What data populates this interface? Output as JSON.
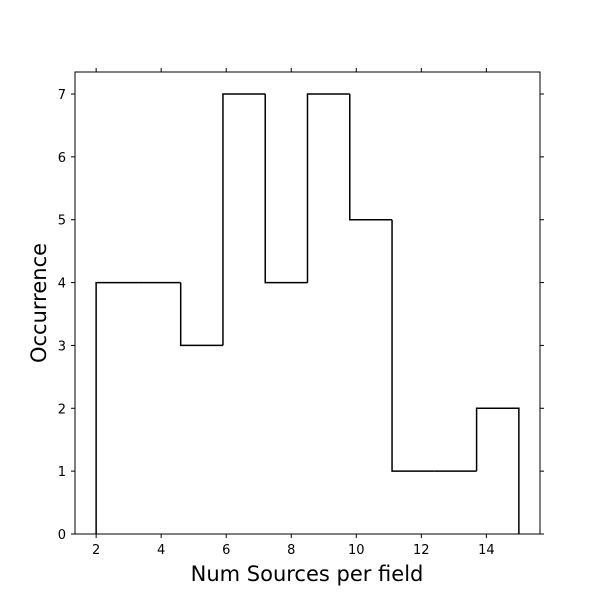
{
  "chart_data": {
    "type": "histogram-step",
    "x_label": "Num Sources per field",
    "y_label": "Occurrence",
    "bins": [
      2,
      3.3,
      4.6,
      5.9,
      7.2,
      8.5,
      9.8,
      11.1,
      12.4,
      13.7,
      15
    ],
    "values": [
      4,
      4,
      3,
      7,
      4,
      7,
      5,
      1,
      1,
      2
    ],
    "color": "#000000",
    "xlim": [
      1.35,
      15.65
    ],
    "ylim": [
      0,
      7.35
    ],
    "xticks": [
      2,
      4,
      6,
      8,
      10,
      12,
      14
    ],
    "yticks": [
      0,
      1,
      2,
      3,
      4,
      5,
      6,
      7
    ]
  }
}
